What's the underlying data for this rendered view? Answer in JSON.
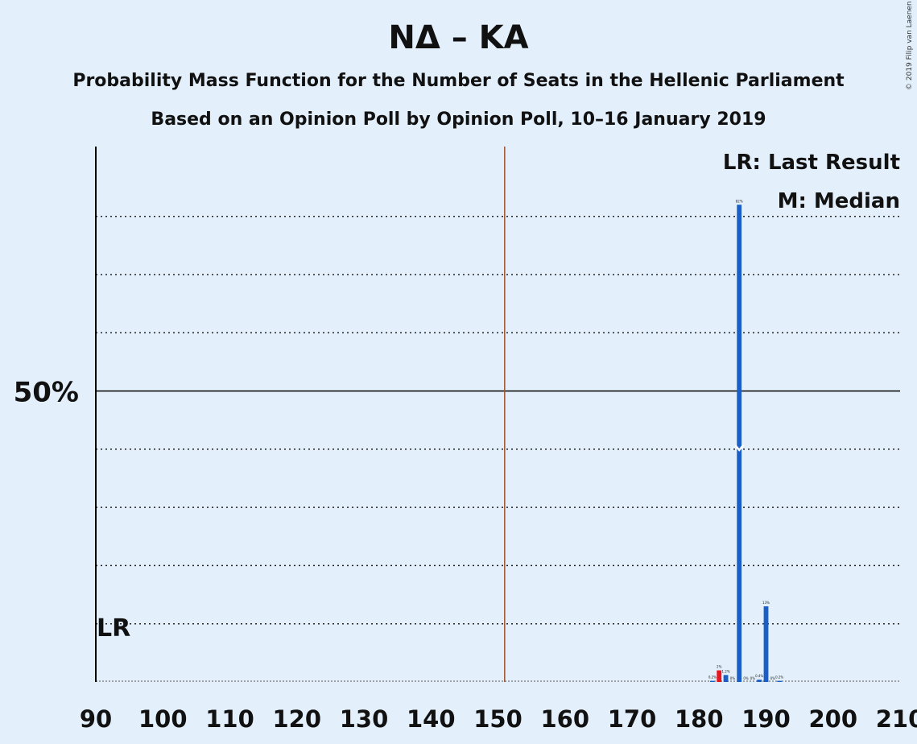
{
  "title": "ΝΔ – ΚΑ",
  "subtitle1": "Probability Mass Function for the Number of Seats in the Hellenic Parliament",
  "subtitle2": "Based on an Opinion Poll by Opinion Poll, 10–16 January 2019",
  "copyright": "© 2019 Filip van Laenen",
  "legend": {
    "lr": "LR: Last Result",
    "median": "M: Median"
  },
  "colors": {
    "background": "#e3f0fc",
    "bar": "#1a5fc8",
    "last_result": "#e8141e",
    "majority_line": "#a0522d"
  },
  "chart_data": {
    "type": "bar",
    "xlabel": "",
    "ylabel": "",
    "xlim": [
      90,
      210
    ],
    "ylim": [
      0,
      90
    ],
    "x_ticks": [
      90,
      100,
      110,
      120,
      130,
      140,
      150,
      160,
      170,
      180,
      190,
      200,
      210
    ],
    "y_labeled_tick": {
      "value": 50,
      "label": "50%"
    },
    "y_gridlines": [
      10,
      20,
      30,
      40,
      60,
      70,
      80
    ],
    "majority_line": 151,
    "last_result": {
      "seats": 90,
      "label": "LR"
    },
    "median": {
      "seats": 186,
      "label": "M"
    },
    "bars": [
      {
        "seats": 182,
        "value": 0.2,
        "label": "0.2%"
      },
      {
        "seats": 183,
        "value": 2,
        "label": "2%",
        "last_result_color": true
      },
      {
        "seats": 184,
        "value": 1.2,
        "label": "1.2%"
      },
      {
        "seats": 185,
        "value": 0,
        "label": "0%"
      },
      {
        "seats": 186,
        "value": 82,
        "label": "82%"
      },
      {
        "seats": 187,
        "value": 0,
        "label": "0%"
      },
      {
        "seats": 188,
        "value": 0,
        "label": "0%"
      },
      {
        "seats": 189,
        "value": 0.4,
        "label": "0.4%"
      },
      {
        "seats": 190,
        "value": 13,
        "label": "13%"
      },
      {
        "seats": 191,
        "value": 0,
        "label": "0%"
      },
      {
        "seats": 192,
        "value": 0.2,
        "label": "0.2%"
      }
    ]
  }
}
